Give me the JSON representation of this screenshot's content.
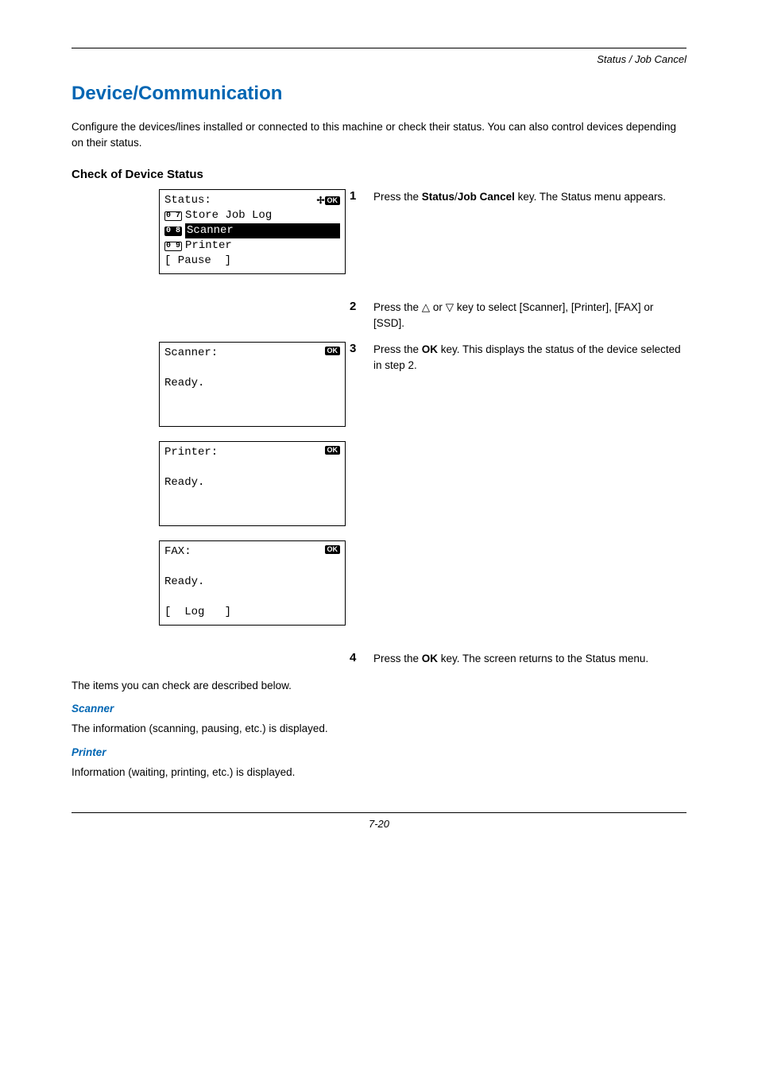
{
  "running_head": "Status / Job Cancel",
  "section_title": "Device/Communication",
  "intro": "Configure the devices/lines installed or connected to this machine or check their status. You can also control devices depending on their status.",
  "sub_title": "Check of Device Status",
  "lcd_status": {
    "title": "Status:",
    "item7_num": "0 7",
    "item7_label": "Store Job Log",
    "item8_num": "0 8",
    "item8_label": "Scanner",
    "item9_num": "0 9",
    "item9_label": "Printer",
    "softkey": "[ Pause  ]",
    "ok": "OK"
  },
  "lcd_scanner": {
    "title": "Scanner:",
    "body": "Ready.",
    "ok": "OK"
  },
  "lcd_printer": {
    "title": "Printer:",
    "body": "Ready.",
    "ok": "OK"
  },
  "lcd_fax": {
    "title": "FAX:",
    "body": "Ready.",
    "softkey": "[  Log   ]",
    "ok": "OK"
  },
  "steps": {
    "s1_pre": "Press the ",
    "s1_b1": "Status",
    "s1_mid1": "/",
    "s1_b2": "Job Cancel",
    "s1_post": " key. The Status menu appears.",
    "s2_pre": "Press the ",
    "s2_tri1": "△",
    "s2_mid": " or ",
    "s2_tri2": "▽",
    "s2_post": " key to select [Scanner], [Printer], [FAX] or [SSD].",
    "s3_pre": "Press the ",
    "s3_b": "OK",
    "s3_post": " key. This displays the status of the device selected in step 2.",
    "s4_pre": "Press the ",
    "s4_b": "OK",
    "s4_post": " key. The screen returns to the Status menu."
  },
  "below_intro": "The items you can check are described below.",
  "scanner_head": "Scanner",
  "scanner_body": "The information (scanning, pausing, etc.) is displayed.",
  "printer_head": "Printer",
  "printer_body": "Information (waiting, printing, etc.) is displayed.",
  "page_num": "7-20"
}
